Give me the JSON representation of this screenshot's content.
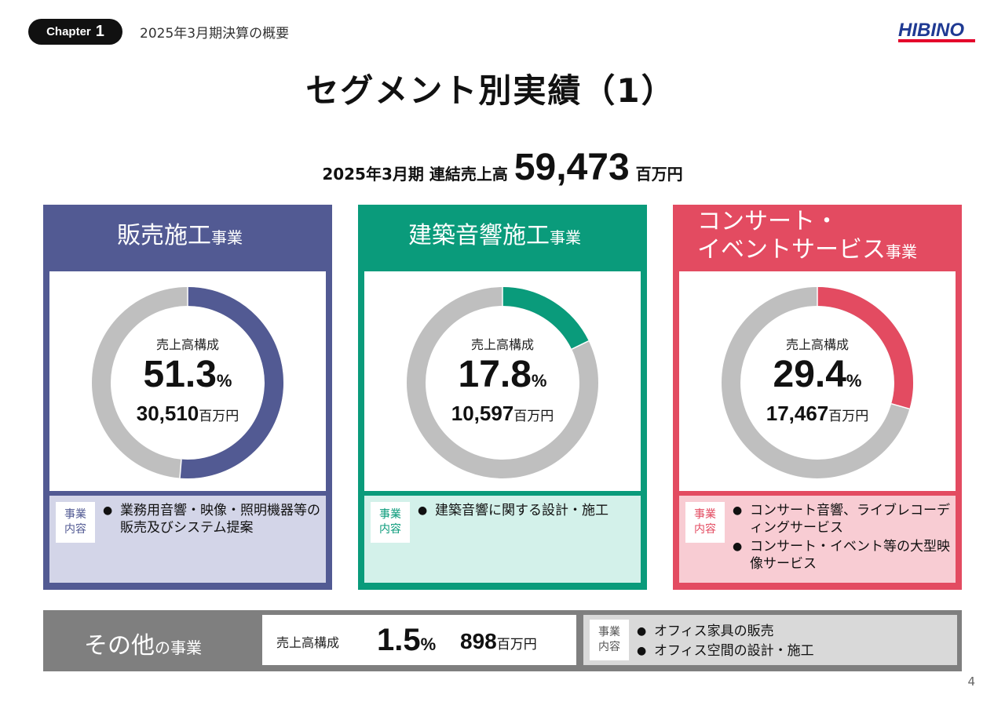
{
  "header": {
    "chapter_label": "Chapter",
    "chapter_number": "1",
    "subtitle": "2025年3月期決算の概要",
    "logo_text": "HIBINO",
    "logo_color": "#1f3a93",
    "logo_accent": "#e4002b"
  },
  "title": "セグメント別実績（1）",
  "summary": {
    "period": "2025年3月期 連結売上高",
    "value": "59,473",
    "unit": "百万円"
  },
  "segments": [
    {
      "name": "販売施工",
      "suffix": "事業",
      "color": "#525a93",
      "desc_bg": "#d3d5e8",
      "tag_color": "#525a93",
      "center_label": "売上高構成",
      "percent_value": 51.3,
      "percent": "51.3",
      "percent_sign": "%",
      "amount": "30,510",
      "amount_unit": "百万円",
      "tag": [
        "事業",
        "内容"
      ],
      "bullets": [
        "業務用音響・映像・照明機器等の販売及びシステム提案"
      ]
    },
    {
      "name": "建築音響施工",
      "suffix": "事業",
      "color": "#0a9b7b",
      "desc_bg": "#d3f1ea",
      "tag_color": "#0a9b7b",
      "center_label": "売上高構成",
      "percent_value": 17.8,
      "percent": "17.8",
      "percent_sign": "%",
      "amount": "10,597",
      "amount_unit": "百万円",
      "tag": [
        "事業",
        "内容"
      ],
      "bullets": [
        "建築音響に関する設計・施工"
      ]
    },
    {
      "name_line1": "コンサート・",
      "name_line2": "イベントサービス",
      "suffix": "事業",
      "color": "#e34b61",
      "desc_bg": "#f8ccd3",
      "tag_color": "#e34b61",
      "center_label": "売上高構成",
      "percent_value": 29.4,
      "percent": "29.4",
      "percent_sign": "%",
      "amount": "17,467",
      "amount_unit": "百万円",
      "tag": [
        "事業",
        "内容"
      ],
      "bullets": [
        "コンサート音響、ライブレコーディングサービス",
        "コンサート・イベント等の大型映像サービス"
      ]
    }
  ],
  "other": {
    "name": "その他",
    "suffix": "の事業",
    "center_label": "売上高構成",
    "percent": "1.5",
    "percent_sign": "%",
    "amount": "898",
    "amount_unit": "百万円",
    "tag": [
      "事業",
      "内容"
    ],
    "bullets": [
      "オフィス家具の販売",
      "オフィス空間の設計・施工"
    ]
  },
  "page_number": "4",
  "ring_gray": "#bfbfbf"
}
